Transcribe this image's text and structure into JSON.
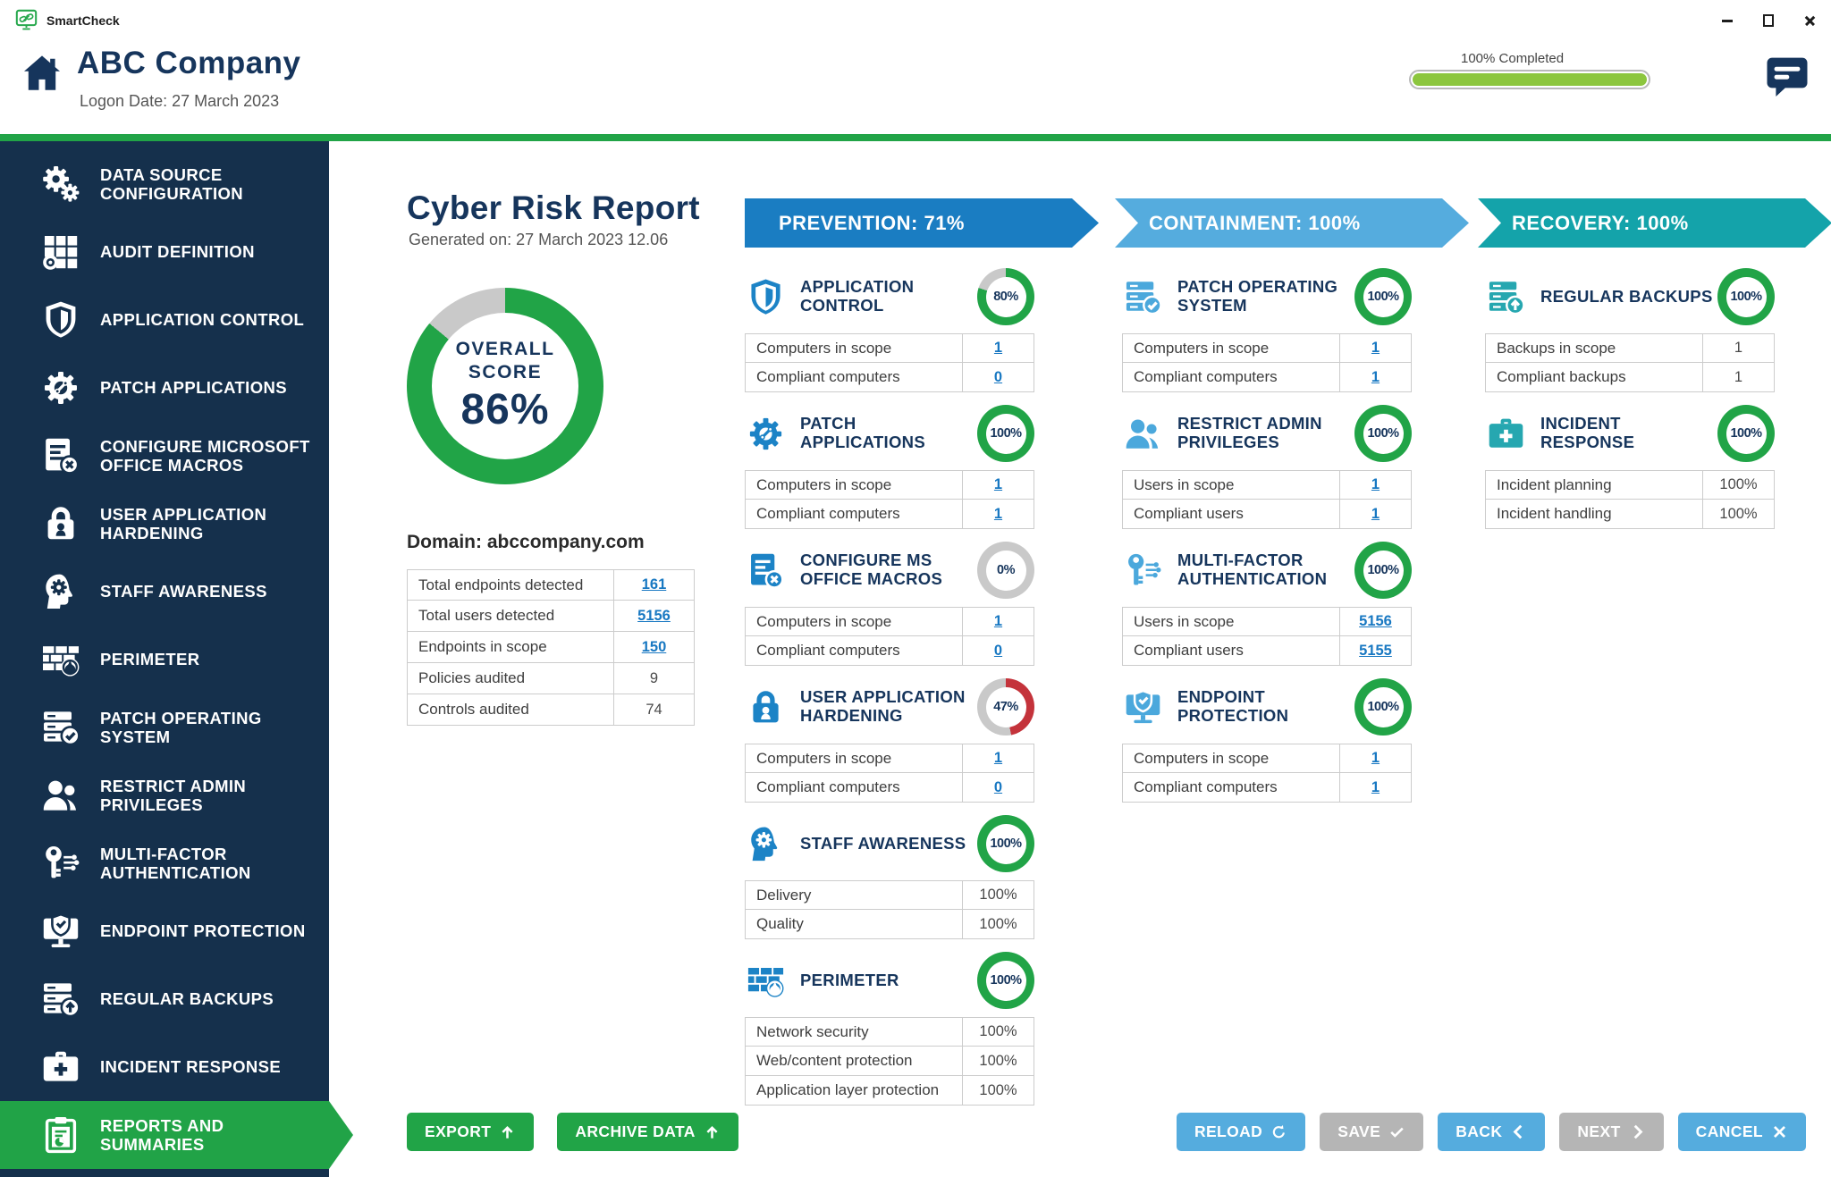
{
  "window": {
    "app_name": "SmartCheck"
  },
  "header": {
    "company_name": "ABC Company",
    "logon_date": "Logon Date: 27 March 2023",
    "progress_label": "100% Completed",
    "progress_percent": 100
  },
  "sidebar": {
    "active_index": 14,
    "items": [
      {
        "label": "DATA SOURCE CONFIGURATION",
        "icon": "gears-icon"
      },
      {
        "label": "AUDIT DEFINITION",
        "icon": "audit-grid-icon"
      },
      {
        "label": "APPLICATION CONTROL",
        "icon": "shield-icon"
      },
      {
        "label": "PATCH APPLICATIONS",
        "icon": "patch-gear-icon"
      },
      {
        "label": "CONFIGURE MICROSOFT OFFICE MACROS",
        "icon": "document-macros-icon"
      },
      {
        "label": "USER APPLICATION HARDENING",
        "icon": "lock-icon"
      },
      {
        "label": "STAFF AWARENESS",
        "icon": "head-gear-icon"
      },
      {
        "label": "PERIMETER",
        "icon": "firewall-icon"
      },
      {
        "label": "PATCH OPERATING SYSTEM",
        "icon": "server-check-icon"
      },
      {
        "label": "RESTRICT ADMIN PRIVILEGES",
        "icon": "users-icon"
      },
      {
        "label": "MULTI-FACTOR AUTHENTICATION",
        "icon": "key-icon"
      },
      {
        "label": "ENDPOINT PROTECTION",
        "icon": "monitor-shield-icon"
      },
      {
        "label": "REGULAR BACKUPS",
        "icon": "server-backup-icon"
      },
      {
        "label": "INCIDENT RESPONSE",
        "icon": "first-aid-icon"
      },
      {
        "label": "REPORTS AND SUMMARIES",
        "icon": "clipboard-report-icon"
      }
    ]
  },
  "report": {
    "title": "Cyber Risk Report",
    "generated": "Generated on: 27 March 2023  12.06",
    "overall": {
      "line1": "OVERALL",
      "line2": "SCORE",
      "value_label": "86%",
      "percent": 86,
      "color": "#21A447"
    },
    "domain": "Domain: abccompany.com",
    "stats": [
      {
        "label": "Total endpoints detected",
        "value": "161",
        "link": true
      },
      {
        "label": "Total users detected",
        "value": "5156",
        "link": true
      },
      {
        "label": "Endpoints in scope",
        "value": "150",
        "link": true
      },
      {
        "label": "Policies audited",
        "value": "9",
        "link": false
      },
      {
        "label": "Controls audited",
        "value": "74",
        "link": false
      }
    ]
  },
  "columns": [
    {
      "title": "PREVENTION: 71%",
      "banner_color": "#1A7DC2",
      "icon_color": "#1C83C6",
      "cards": [
        {
          "title": "APPLICATION CONTROL",
          "icon": "shield-icon",
          "percent": 80,
          "percent_label": "80%",
          "ring": "#21A447",
          "rows": [
            {
              "label": "Computers in scope",
              "value": "1",
              "link": true
            },
            {
              "label": "Compliant computers",
              "value": "0",
              "link": true
            }
          ]
        },
        {
          "title": "PATCH APPLICATIONS",
          "icon": "patch-gear-icon",
          "percent": 100,
          "percent_label": "100%",
          "ring": "#21A447",
          "rows": [
            {
              "label": "Computers in scope",
              "value": "1",
              "link": true
            },
            {
              "label": "Compliant computers",
              "value": "1",
              "link": true
            }
          ]
        },
        {
          "title": "CONFIGURE MS OFFICE MACROS",
          "icon": "document-macros-icon",
          "percent": 0,
          "percent_label": "0%",
          "ring": "#C9C9C9",
          "rows": [
            {
              "label": "Computers in scope",
              "value": "1",
              "link": true
            },
            {
              "label": "Compliant computers",
              "value": "0",
              "link": true
            }
          ]
        },
        {
          "title": "USER APPLICATION HARDENING",
          "icon": "lock-icon",
          "percent": 47,
          "percent_label": "47%",
          "ring": "#C4333B",
          "rows": [
            {
              "label": "Computers in scope",
              "value": "1",
              "link": true
            },
            {
              "label": "Compliant computers",
              "value": "0",
              "link": true
            }
          ]
        },
        {
          "title": "STAFF AWARENESS",
          "icon": "head-gear-icon",
          "percent": 100,
          "percent_label": "100%",
          "ring": "#21A447",
          "rows": [
            {
              "label": "Delivery",
              "value": "100%",
              "link": false
            },
            {
              "label": "Quality",
              "value": "100%",
              "link": false
            }
          ]
        },
        {
          "title": "PERIMETER",
          "icon": "firewall-icon",
          "percent": 100,
          "percent_label": "100%",
          "ring": "#21A447",
          "rows": [
            {
              "label": "Network security",
              "value": "100%",
              "link": false
            },
            {
              "label": "Web/content protection",
              "value": "100%",
              "link": false
            },
            {
              "label": "Application layer protection",
              "value": "100%",
              "link": false
            }
          ]
        }
      ]
    },
    {
      "title": "CONTAINMENT: 100%",
      "banner_color": "#55ACDE",
      "icon_color": "#4BA8DC",
      "cards": [
        {
          "title": "PATCH OPERATING SYSTEM",
          "icon": "server-check-icon",
          "percent": 100,
          "percent_label": "100%",
          "ring": "#21A447",
          "rows": [
            {
              "label": "Computers in scope",
              "value": "1",
              "link": true
            },
            {
              "label": "Compliant computers",
              "value": "1",
              "link": true
            }
          ]
        },
        {
          "title": "RESTRICT ADMIN PRIVILEGES",
          "icon": "users-icon",
          "percent": 100,
          "percent_label": "100%",
          "ring": "#21A447",
          "rows": [
            {
              "label": "Users in scope",
              "value": "1",
              "link": true
            },
            {
              "label": "Compliant users",
              "value": "1",
              "link": true
            }
          ]
        },
        {
          "title": "MULTI-FACTOR AUTHENTICATION",
          "icon": "key-icon",
          "percent": 100,
          "percent_label": "100%",
          "ring": "#21A447",
          "rows": [
            {
              "label": "Users in scope",
              "value": "5156",
              "link": true
            },
            {
              "label": "Compliant users",
              "value": "5155",
              "link": true
            }
          ]
        },
        {
          "title": "ENDPOINT PROTECTION",
          "icon": "monitor-shield-icon",
          "percent": 100,
          "percent_label": "100%",
          "ring": "#21A447",
          "rows": [
            {
              "label": "Computers in scope",
              "value": "1",
              "link": true
            },
            {
              "label": "Compliant computers",
              "value": "1",
              "link": true
            }
          ]
        }
      ]
    },
    {
      "title": "RECOVERY: 100%",
      "banner_color": "#14A3AA",
      "icon_color": "#26A7B0",
      "cards": [
        {
          "title": "REGULAR BACKUPS",
          "icon": "server-backup-icon",
          "percent": 100,
          "percent_label": "100%",
          "ring": "#21A447",
          "rows": [
            {
              "label": "Backups in scope",
              "value": "1",
              "link": false
            },
            {
              "label": "Compliant backups",
              "value": "1",
              "link": false
            }
          ]
        },
        {
          "title": "INCIDENT RESPONSE",
          "icon": "first-aid-icon",
          "percent": 100,
          "percent_label": "100%",
          "ring": "#21A447",
          "rows": [
            {
              "label": "Incident planning",
              "value": "100%",
              "link": false
            },
            {
              "label": "Incident handling",
              "value": "100%",
              "link": false
            }
          ]
        }
      ]
    }
  ],
  "footer": {
    "left_buttons": [
      {
        "label": "EXPORT",
        "icon": "up-arrow-icon",
        "style": "green"
      },
      {
        "label": "ARCHIVE DATA",
        "icon": "up-arrow-icon",
        "style": "green"
      }
    ],
    "right_buttons": [
      {
        "label": "RELOAD",
        "icon": "reload-icon",
        "style": "blue"
      },
      {
        "label": "SAVE",
        "icon": "check-icon",
        "style": "gray"
      },
      {
        "label": "BACK",
        "icon": "chevron-left-icon",
        "style": "blue"
      },
      {
        "label": "NEXT",
        "icon": "chevron-right-icon",
        "style": "gray"
      },
      {
        "label": "CANCEL",
        "icon": "close-icon",
        "style": "blue"
      }
    ]
  }
}
